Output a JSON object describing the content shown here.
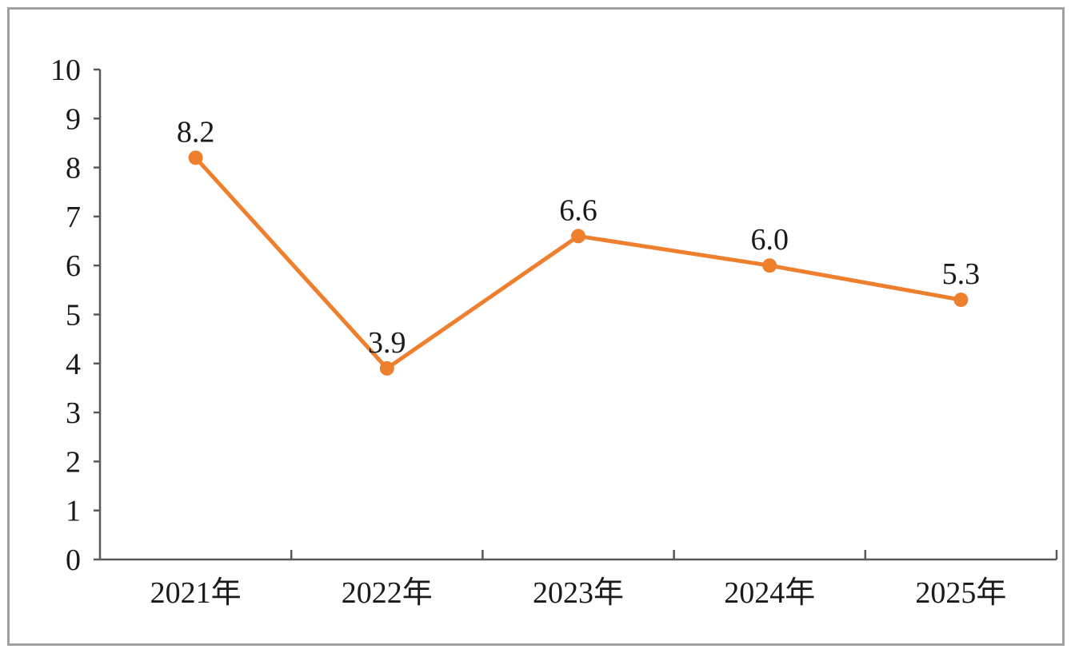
{
  "chart_data": {
    "type": "line",
    "title": "",
    "xlabel": "",
    "ylabel": "",
    "categories": [
      "2021年",
      "2022年",
      "2023年",
      "2024年",
      "2025年"
    ],
    "series": [
      {
        "values": [
          8.2,
          3.9,
          6.6,
          6.0,
          5.3
        ],
        "data_labels": [
          "8.2",
          "3.9",
          "6.6",
          "6.0",
          "5.3"
        ],
        "color": "#ee7f2d"
      }
    ],
    "ylim": [
      0,
      10
    ],
    "yticks": [
      "0",
      "1",
      "2",
      "3",
      "4",
      "5",
      "6",
      "7",
      "8",
      "9",
      "10"
    ],
    "grid": false,
    "legend": "none",
    "axis_color": "#595959",
    "border_color": "#a0a0a0"
  }
}
